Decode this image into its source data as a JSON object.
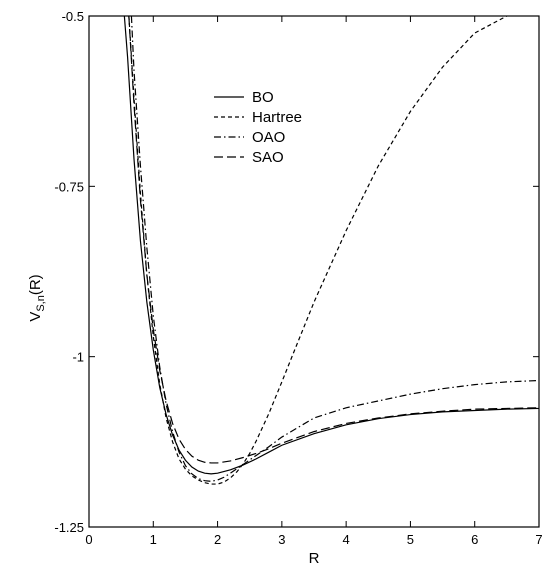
{
  "chart_data": {
    "type": "line",
    "title": "",
    "xlabel": "R",
    "ylabel_main": "V",
    "ylabel_sub": "S,n",
    "ylabel_tail": "(R)",
    "xlim": [
      0,
      7
    ],
    "ylim": [
      -1.25,
      -0.5
    ],
    "x_ticks": [
      0,
      1,
      2,
      3,
      4,
      5,
      6,
      7
    ],
    "x_tick_labels": [
      "0",
      "1",
      "2",
      "3",
      "4",
      "5",
      "6",
      "7"
    ],
    "y_ticks": [
      -0.5,
      -0.75,
      -1,
      -1.25
    ],
    "y_tick_labels": [
      "-0.5",
      "-0.75",
      "-1",
      "-1.25"
    ],
    "grid": false,
    "legend_position": "upper-left-inside",
    "series": [
      {
        "name": "BO",
        "style": "solid",
        "x": [
          0.55,
          0.6,
          0.7,
          0.8,
          0.9,
          1.0,
          1.1,
          1.2,
          1.3,
          1.4,
          1.5,
          1.6,
          1.7,
          1.8,
          1.9,
          2.0,
          2.2,
          2.4,
          2.6,
          2.8,
          3.0,
          3.5,
          4.0,
          4.5,
          5.0,
          5.5,
          6.0,
          6.5,
          7.0
        ],
        "y": [
          -0.5,
          -0.56,
          -0.71,
          -0.83,
          -0.92,
          -0.99,
          -1.045,
          -1.085,
          -1.115,
          -1.137,
          -1.152,
          -1.162,
          -1.168,
          -1.171,
          -1.172,
          -1.171,
          -1.166,
          -1.159,
          -1.15,
          -1.14,
          -1.13,
          -1.113,
          -1.1,
          -1.091,
          -1.085,
          -1.081,
          -1.079,
          -1.077,
          -1.076
        ]
      },
      {
        "name": "Hartree",
        "style": "short-dash",
        "x": [
          0.62,
          0.7,
          0.8,
          0.9,
          1.0,
          1.1,
          1.2,
          1.3,
          1.4,
          1.5,
          1.6,
          1.7,
          1.8,
          1.9,
          2.0,
          2.1,
          2.2,
          2.3,
          2.4,
          2.5,
          2.6,
          2.8,
          3.0,
          3.2,
          3.5,
          4.0,
          4.5,
          5.0,
          5.5,
          6.0,
          6.5
        ],
        "y": [
          -0.5,
          -0.62,
          -0.76,
          -0.88,
          -0.97,
          -1.04,
          -1.09,
          -1.125,
          -1.15,
          -1.165,
          -1.175,
          -1.181,
          -1.185,
          -1.187,
          -1.187,
          -1.184,
          -1.178,
          -1.169,
          -1.157,
          -1.142,
          -1.124,
          -1.083,
          -1.037,
          -0.99,
          -0.92,
          -0.815,
          -0.72,
          -0.64,
          -0.575,
          -0.525,
          -0.5
        ]
      },
      {
        "name": "OAO",
        "style": "dash-dot",
        "x": [
          0.66,
          0.7,
          0.8,
          0.9,
          1.0,
          1.1,
          1.2,
          1.3,
          1.4,
          1.5,
          1.6,
          1.7,
          1.8,
          1.9,
          2.0,
          2.1,
          2.2,
          2.4,
          2.6,
          2.8,
          3.0,
          3.5,
          4.0,
          4.5,
          5.0,
          5.5,
          6.0,
          6.5,
          7.0
        ],
        "y": [
          -0.5,
          -0.58,
          -0.72,
          -0.84,
          -0.94,
          -1.015,
          -1.07,
          -1.11,
          -1.14,
          -1.16,
          -1.172,
          -1.179,
          -1.182,
          -1.183,
          -1.181,
          -1.177,
          -1.171,
          -1.158,
          -1.145,
          -1.132,
          -1.118,
          -1.09,
          -1.075,
          -1.065,
          -1.055,
          -1.047,
          -1.041,
          -1.037,
          -1.035
        ]
      },
      {
        "name": "SAO",
        "style": "long-dash",
        "x": [
          0.62,
          0.7,
          0.8,
          0.9,
          1.0,
          1.1,
          1.2,
          1.3,
          1.4,
          1.5,
          1.6,
          1.7,
          1.8,
          1.9,
          2.0,
          2.2,
          2.4,
          2.6,
          2.8,
          3.0,
          3.5,
          4.0,
          4.5,
          5.0,
          5.5,
          6.0,
          6.5,
          7.0
        ],
        "y": [
          -0.5,
          -0.63,
          -0.77,
          -0.88,
          -0.96,
          -1.02,
          -1.065,
          -1.098,
          -1.121,
          -1.136,
          -1.146,
          -1.152,
          -1.155,
          -1.156,
          -1.156,
          -1.153,
          -1.148,
          -1.142,
          -1.135,
          -1.127,
          -1.11,
          -1.098,
          -1.09,
          -1.084,
          -1.08,
          -1.077,
          -1.076,
          -1.075
        ]
      }
    ]
  }
}
